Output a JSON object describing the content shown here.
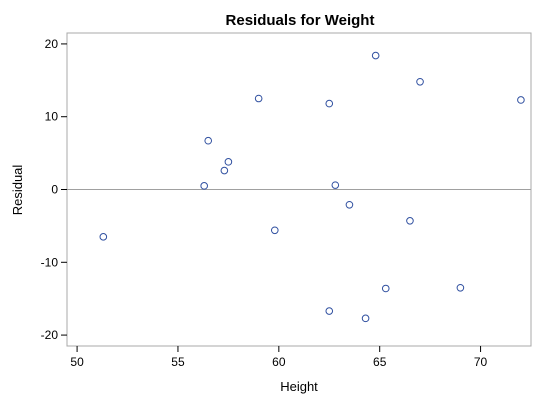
{
  "chart_data": {
    "type": "scatter",
    "title": "Residuals for Weight",
    "xlabel": "Height",
    "ylabel": "Residual",
    "xlim": [
      49.5,
      72.5
    ],
    "ylim": [
      -21.5,
      21.5
    ],
    "xticks": [
      50,
      55,
      60,
      65,
      70
    ],
    "yticks": [
      -20,
      -10,
      0,
      10,
      20
    ],
    "reference_line_y": 0,
    "grid": false,
    "marker_color": "#3050a0",
    "reference_line_color": "#a0a0a0",
    "points": [
      {
        "x": 51.3,
        "y": -6.5
      },
      {
        "x": 56.3,
        "y": 0.5
      },
      {
        "x": 56.5,
        "y": 6.7
      },
      {
        "x": 57.3,
        "y": 2.6
      },
      {
        "x": 57.5,
        "y": 3.8
      },
      {
        "x": 59.0,
        "y": 12.5
      },
      {
        "x": 59.8,
        "y": -5.6
      },
      {
        "x": 62.5,
        "y": 11.8
      },
      {
        "x": 62.5,
        "y": -16.7
      },
      {
        "x": 62.8,
        "y": 0.6
      },
      {
        "x": 63.5,
        "y": -2.1
      },
      {
        "x": 64.3,
        "y": -17.7
      },
      {
        "x": 64.8,
        "y": 18.4
      },
      {
        "x": 65.3,
        "y": -13.6
      },
      {
        "x": 66.5,
        "y": -4.3
      },
      {
        "x": 67.0,
        "y": 14.8
      },
      {
        "x": 69.0,
        "y": -13.5
      },
      {
        "x": 72.0,
        "y": 12.3
      }
    ]
  }
}
